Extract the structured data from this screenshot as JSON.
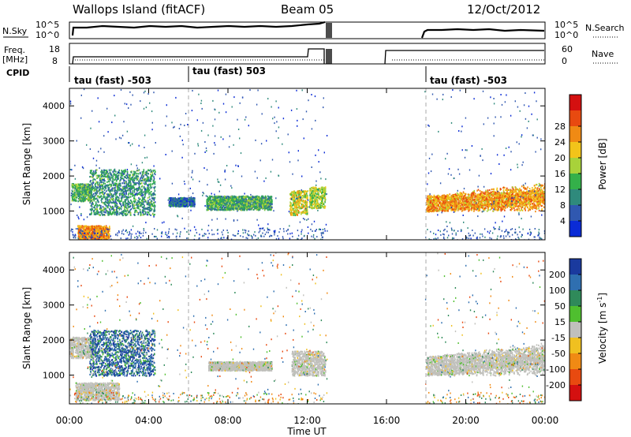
{
  "header": {
    "site": "Wallops Island (fitACF)",
    "beam": "Beam 05",
    "date": "12/Oct/2012"
  },
  "status_panels": {
    "noise_label": "N.Sky",
    "noise_ticks": [
      "10^5",
      "10^0"
    ],
    "noise_right_label": "N.Search",
    "freq_label": "Freq.",
    "freq_unit": "[MHz]",
    "freq_ticks": [
      "18",
      "8"
    ],
    "nave_label": "Nave",
    "nave_ticks": [
      "60",
      "0"
    ],
    "cpid_label": "CPID",
    "cpid_segments": [
      {
        "start_hour": 0,
        "label": "tau (fast) -503"
      },
      {
        "start_hour": 6,
        "label": "tau (fast) 503"
      },
      {
        "start_hour": 18,
        "label": "tau (fast) -503"
      }
    ],
    "data_gap_hours": [
      13.0,
      16.7
    ]
  },
  "chart_data": [
    {
      "type": "heatmap",
      "panel": "power",
      "xlabel": "Time UT",
      "ylabel": "Slant Range [km]",
      "xlim": [
        0,
        24
      ],
      "ylim": [
        180,
        4500
      ],
      "x_ticks": [
        "00:00",
        "04:00",
        "08:00",
        "12:00",
        "16:00",
        "20:00",
        "00:00"
      ],
      "y_ticks": [
        1000,
        2000,
        3000,
        4000
      ],
      "colorbar": {
        "label": "Power [dB]",
        "ticks": [
          4,
          8,
          12,
          16,
          20,
          24,
          28
        ],
        "colors": [
          "#0a2bd6",
          "#3058b0",
          "#2f8a7c",
          "#34b04a",
          "#a8d23a",
          "#f2c41a",
          "#f08a14",
          "#e84a10",
          "#d41010"
        ]
      },
      "echo_regions": [
        {
          "t": [
            0.1,
            1.1
          ],
          "range": [
            1300,
            1800
          ],
          "level": 14,
          "desc": "descending band"
        },
        {
          "t": [
            1.0,
            4.3
          ],
          "range": [
            900,
            2200
          ],
          "level": 11,
          "desc": "sloped bands"
        },
        {
          "t": [
            0.4,
            2.0
          ],
          "range": [
            230,
            600
          ],
          "level": 26,
          "desc": "strong near-range echoes"
        },
        {
          "t": [
            5.0,
            6.3
          ],
          "range": [
            1150,
            1400
          ],
          "level": 7,
          "desc": "weak patch"
        },
        {
          "t": [
            6.9,
            10.2
          ],
          "range": [
            1050,
            1450
          ],
          "level": 13,
          "desc": "band"
        },
        {
          "t": [
            11.1,
            12.0
          ],
          "range": [
            900,
            1600
          ],
          "level": 20,
          "desc": "sloped bands"
        },
        {
          "t": [
            12.1,
            12.9
          ],
          "range": [
            1100,
            1700
          ],
          "level": 18,
          "desc": "band"
        },
        {
          "t": [
            18.0,
            24.0
          ],
          "range": [
            1000,
            1450
          ],
          "level": 25,
          "desc": "strong band rising toward end"
        }
      ]
    },
    {
      "type": "heatmap",
      "panel": "velocity",
      "xlabel": "Time UT",
      "ylabel": "Slant Range [km]",
      "xlim": [
        0,
        24
      ],
      "ylim": [
        180,
        4500
      ],
      "x_ticks": [
        "00:00",
        "04:00",
        "08:00",
        "12:00",
        "16:00",
        "20:00",
        "00:00"
      ],
      "y_ticks": [
        1000,
        2000,
        3000,
        4000
      ],
      "colorbar": {
        "label": "Velocity [m s^-1]",
        "unit_superscript": "-1",
        "ticks": [
          200,
          100,
          50,
          15,
          -15,
          -50,
          -100,
          -200
        ],
        "colors": [
          "#1a3a9e",
          "#2f6fb0",
          "#2f8a5a",
          "#4fbf2f",
          "#c0c0bc",
          "#f0c020",
          "#f08a14",
          "#e84a10",
          "#d41010"
        ]
      },
      "echo_regions": [
        {
          "t": [
            0.0,
            1.3
          ],
          "range": [
            1500,
            2100
          ],
          "value": 0,
          "desc": "ground scatter"
        },
        {
          "t": [
            1.0,
            4.3
          ],
          "range": [
            1000,
            2300
          ],
          "value": 150,
          "desc": "mixed positive velocities"
        },
        {
          "t": [
            0.3,
            2.5
          ],
          "range": [
            300,
            800
          ],
          "value": 0,
          "desc": "near-range ground scatter"
        },
        {
          "t": [
            7.0,
            10.2
          ],
          "range": [
            1150,
            1400
          ],
          "value": 0,
          "desc": "ground scatter band"
        },
        {
          "t": [
            11.2,
            12.9
          ],
          "range": [
            1000,
            1700
          ],
          "value": 0,
          "desc": "ground scatter"
        },
        {
          "t": [
            18.0,
            24.0
          ],
          "range": [
            1000,
            1550
          ],
          "value": 0,
          "desc": "ground scatter band rising"
        }
      ]
    }
  ]
}
